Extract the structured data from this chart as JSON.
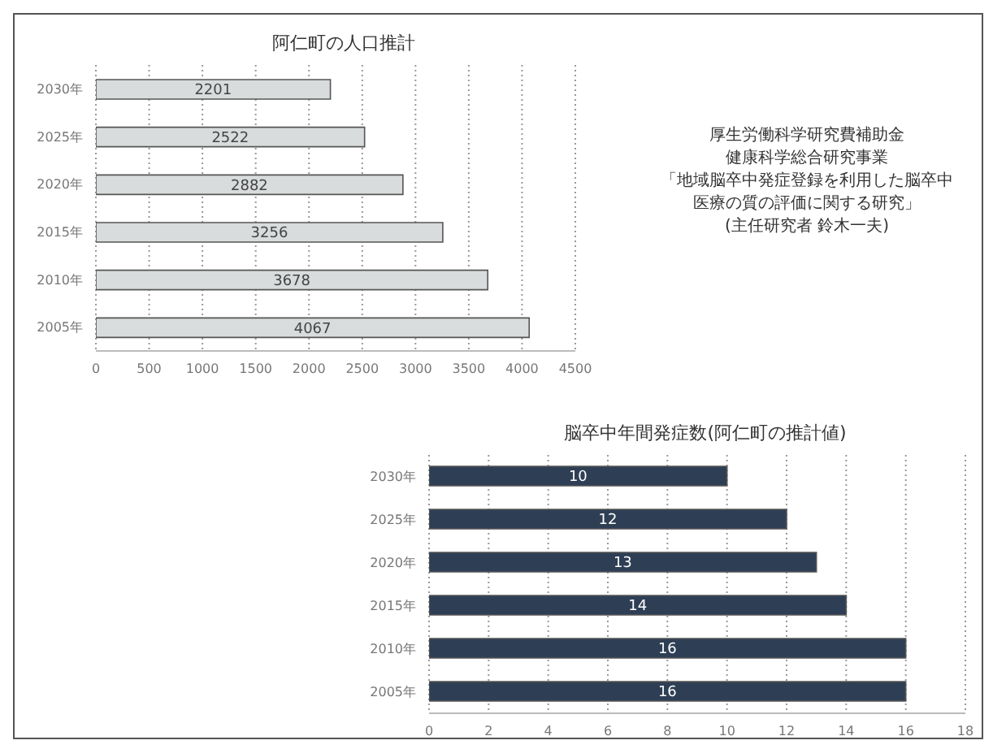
{
  "chart_data": [
    {
      "type": "bar",
      "orientation": "horizontal",
      "title": "阿仁町の人口推計",
      "categories": [
        "2030年",
        "2025年",
        "2020年",
        "2015年",
        "2010年",
        "2005年"
      ],
      "values": [
        2201,
        2522,
        2882,
        3256,
        3678,
        4067
      ],
      "color": "#d9dcdc",
      "xlim": [
        0,
        4500
      ],
      "xticks": [
        0,
        500,
        1000,
        1500,
        2000,
        2500,
        3000,
        3500,
        4000,
        4500
      ],
      "grid": "x",
      "data_labels": true,
      "legend": false,
      "annotations": [
        "厚生労働科学研究費補助金",
        "健康科学総合研究事業",
        "「地域脳卒中発症登録を利用した脳卒中医療の質の評価に関する研究」",
        "(主任研究者 鈴木一夫)"
      ]
    },
    {
      "type": "bar",
      "orientation": "horizontal",
      "title": "脳卒中年間発症数(阿仁町の推計値)",
      "categories": [
        "2030年",
        "2025年",
        "2020年",
        "2015年",
        "2010年",
        "2005年"
      ],
      "values": [
        10,
        12,
        13,
        14,
        16,
        16
      ],
      "color": "#2e3f55",
      "xlim": [
        0,
        18
      ],
      "xticks": [
        0,
        2,
        4,
        6,
        8,
        10,
        12,
        14,
        16,
        18
      ],
      "grid": "x",
      "data_labels": true,
      "legend": false
    }
  ]
}
